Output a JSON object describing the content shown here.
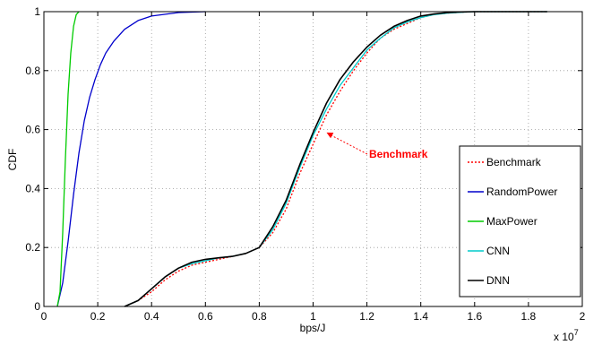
{
  "chart_data": {
    "type": "line",
    "title": "",
    "xlabel": "bps/J",
    "ylabel": "CDF",
    "x_multiplier": "x 10",
    "x_multiplier_exp": "7",
    "xlim": [
      0,
      2
    ],
    "ylim": [
      0,
      1
    ],
    "x_ticks": [
      "0",
      "0.2",
      "0.4",
      "0.6",
      "0.8",
      "1",
      "1.2",
      "1.4",
      "1.6",
      "1.8",
      "2"
    ],
    "y_ticks": [
      "0",
      "0.2",
      "0.4",
      "0.6",
      "0.8",
      "1"
    ],
    "grid": true,
    "legend_position": "bottom-right",
    "annotation": {
      "text": "Benchmark",
      "arrow_to": [
        1.05,
        0.59
      ],
      "color": "#ff0000"
    },
    "series": [
      {
        "name": "Benchmark",
        "color": "#ff0000",
        "style": "dotted",
        "x": [
          0.3,
          0.35,
          0.4,
          0.45,
          0.5,
          0.55,
          0.6,
          0.65,
          0.7,
          0.75,
          0.8,
          0.85,
          0.9,
          0.95,
          1.0,
          1.05,
          1.1,
          1.15,
          1.2,
          1.25,
          1.3,
          1.35,
          1.4,
          1.45,
          1.5,
          1.55,
          1.6,
          1.7,
          1.87
        ],
        "y": [
          0.0,
          0.02,
          0.05,
          0.09,
          0.12,
          0.14,
          0.15,
          0.16,
          0.17,
          0.18,
          0.2,
          0.25,
          0.33,
          0.45,
          0.55,
          0.65,
          0.73,
          0.8,
          0.86,
          0.91,
          0.94,
          0.96,
          0.98,
          0.99,
          0.995,
          0.998,
          1.0,
          1.0,
          1.0
        ]
      },
      {
        "name": "RandomPower",
        "color": "#0000cc",
        "style": "solid",
        "x": [
          0.05,
          0.07,
          0.09,
          0.11,
          0.13,
          0.15,
          0.17,
          0.19,
          0.21,
          0.23,
          0.26,
          0.3,
          0.35,
          0.4,
          0.5,
          0.6
        ],
        "y": [
          0.0,
          0.08,
          0.22,
          0.38,
          0.52,
          0.63,
          0.71,
          0.77,
          0.82,
          0.86,
          0.9,
          0.94,
          0.97,
          0.985,
          0.997,
          1.0
        ]
      },
      {
        "name": "MaxPower",
        "color": "#00cc00",
        "style": "solid",
        "x": [
          0.05,
          0.06,
          0.07,
          0.08,
          0.09,
          0.1,
          0.11,
          0.12,
          0.13
        ],
        "y": [
          0.0,
          0.05,
          0.25,
          0.5,
          0.72,
          0.86,
          0.95,
          0.99,
          1.0
        ]
      },
      {
        "name": "CNN",
        "color": "#00cccc",
        "style": "solid",
        "x": [
          0.3,
          0.35,
          0.4,
          0.45,
          0.5,
          0.55,
          0.6,
          0.65,
          0.7,
          0.75,
          0.8,
          0.85,
          0.9,
          0.95,
          1.0,
          1.05,
          1.1,
          1.15,
          1.2,
          1.25,
          1.3,
          1.35,
          1.4,
          1.45,
          1.5,
          1.55,
          1.6,
          1.7,
          1.87
        ],
        "y": [
          0.0,
          0.02,
          0.06,
          0.1,
          0.13,
          0.145,
          0.155,
          0.165,
          0.17,
          0.18,
          0.2,
          0.26,
          0.35,
          0.47,
          0.58,
          0.67,
          0.75,
          0.81,
          0.87,
          0.91,
          0.945,
          0.965,
          0.98,
          0.99,
          0.995,
          0.998,
          1.0,
          1.0,
          1.0
        ]
      },
      {
        "name": "DNN",
        "color": "#000000",
        "style": "solid",
        "x": [
          0.3,
          0.35,
          0.4,
          0.45,
          0.5,
          0.55,
          0.6,
          0.65,
          0.7,
          0.75,
          0.8,
          0.85,
          0.9,
          0.95,
          1.0,
          1.05,
          1.1,
          1.15,
          1.2,
          1.25,
          1.3,
          1.35,
          1.4,
          1.45,
          1.5,
          1.55,
          1.6,
          1.7,
          1.87
        ],
        "y": [
          0.0,
          0.02,
          0.06,
          0.1,
          0.13,
          0.15,
          0.16,
          0.165,
          0.17,
          0.18,
          0.2,
          0.27,
          0.36,
          0.48,
          0.59,
          0.69,
          0.77,
          0.83,
          0.88,
          0.92,
          0.95,
          0.97,
          0.985,
          0.992,
          0.997,
          0.999,
          1.0,
          1.0,
          1.0
        ]
      }
    ]
  }
}
